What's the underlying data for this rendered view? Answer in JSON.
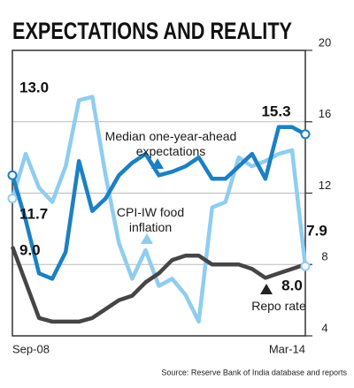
{
  "chart_data": {
    "type": "line",
    "title": "EXPECTATIONS AND REALITY",
    "source": "Source: Reserve Bank of India database and reports",
    "categories": [
      "Sep-08",
      null,
      null,
      null,
      null,
      null,
      null,
      null,
      null,
      null,
      null,
      null,
      null,
      null,
      null,
      null,
      null,
      null,
      null,
      null,
      null,
      null,
      "Mar-14"
    ],
    "series": [
      {
        "name": "Median one-year-ahead expectations",
        "color": "#1b80c4",
        "values": [
          13.0,
          10.5,
          7.5,
          7.2,
          8.7,
          13.8,
          11.0,
          11.7,
          13.0,
          13.7,
          14.2,
          13.0,
          13.2,
          13.5,
          14.0,
          12.8,
          12.8,
          13.5,
          14.2,
          12.8,
          15.7,
          15.7,
          15.3
        ],
        "value_labels": [
          "13.0",
          null,
          null,
          null,
          null,
          null,
          null,
          null,
          null,
          null,
          null,
          null,
          null,
          null,
          null,
          null,
          null,
          null,
          null,
          null,
          null,
          null,
          "15.3"
        ]
      },
      {
        "name": "CPI-IW food inflation",
        "color": "#8fcdf0",
        "values": [
          11.7,
          14.2,
          12.3,
          11.5,
          13.5,
          17.2,
          17.4,
          13.0,
          9.2,
          7.2,
          8.8,
          6.8,
          7.2,
          6.3,
          4.8,
          11.2,
          11.5,
          14.0,
          13.5,
          13.8,
          14.2,
          14.4,
          7.9
        ],
        "value_labels": [
          "11.7",
          null,
          null,
          null,
          null,
          null,
          null,
          null,
          null,
          null,
          null,
          null,
          null,
          null,
          null,
          null,
          null,
          null,
          null,
          null,
          null,
          null,
          "7.9"
        ]
      },
      {
        "name": "Repo rate",
        "color": "#454545",
        "values": [
          9.0,
          7.0,
          5.0,
          4.8,
          4.8,
          4.8,
          5.0,
          5.5,
          6.0,
          6.25,
          7.0,
          7.5,
          8.25,
          8.5,
          8.5,
          8.0,
          8.0,
          8.0,
          7.75,
          7.25,
          7.5,
          7.75,
          8.0
        ],
        "value_labels": [
          "9.0",
          null,
          null,
          null,
          null,
          null,
          null,
          null,
          null,
          null,
          null,
          null,
          null,
          null,
          null,
          null,
          null,
          null,
          null,
          null,
          null,
          null,
          "8.0"
        ]
      }
    ],
    "ylim": [
      4,
      20
    ],
    "yticks": [
      4,
      8,
      12,
      16,
      20
    ],
    "grid": true
  }
}
